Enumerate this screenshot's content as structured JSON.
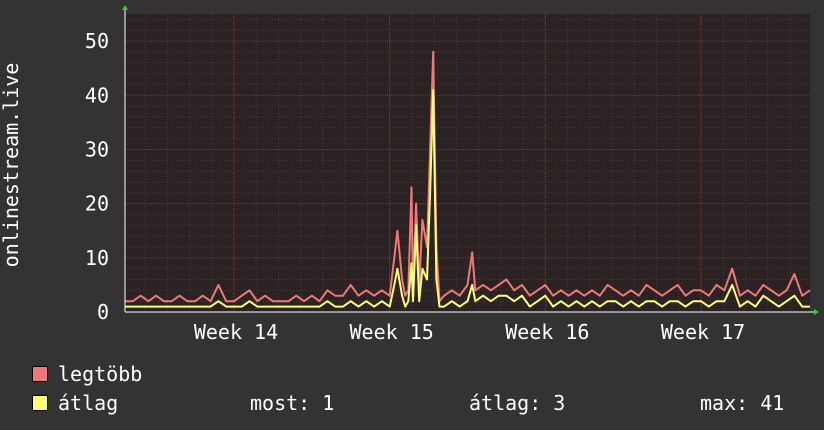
{
  "chart_data": {
    "type": "line",
    "ylabel": "onlinestream.live",
    "ylim": [
      0,
      55
    ],
    "yticks": [
      0,
      10,
      20,
      30,
      40,
      50
    ],
    "x_range_weeks": [
      13.3,
      17.7
    ],
    "xticks": [
      {
        "label": "Week 14",
        "x": 14.0
      },
      {
        "label": "Week 15",
        "x": 15.0
      },
      {
        "label": "Week 16",
        "x": 16.0
      },
      {
        "label": "Week 17",
        "x": 17.0
      }
    ],
    "grid": true,
    "background": "#2b2323",
    "series": [
      {
        "name": "legtöbb",
        "color": "#f07878",
        "points": [
          [
            13.3,
            2
          ],
          [
            13.35,
            2
          ],
          [
            13.4,
            3
          ],
          [
            13.45,
            2
          ],
          [
            13.5,
            3
          ],
          [
            13.55,
            2
          ],
          [
            13.6,
            2
          ],
          [
            13.65,
            3
          ],
          [
            13.7,
            2
          ],
          [
            13.75,
            2
          ],
          [
            13.8,
            3
          ],
          [
            13.85,
            2
          ],
          [
            13.9,
            5
          ],
          [
            13.95,
            2
          ],
          [
            14.0,
            2
          ],
          [
            14.05,
            3
          ],
          [
            14.1,
            4
          ],
          [
            14.15,
            2
          ],
          [
            14.2,
            3
          ],
          [
            14.25,
            2
          ],
          [
            14.3,
            2
          ],
          [
            14.35,
            2
          ],
          [
            14.4,
            3
          ],
          [
            14.45,
            2
          ],
          [
            14.5,
            3
          ],
          [
            14.55,
            2
          ],
          [
            14.6,
            4
          ],
          [
            14.65,
            3
          ],
          [
            14.7,
            3
          ],
          [
            14.75,
            5
          ],
          [
            14.8,
            3
          ],
          [
            14.85,
            4
          ],
          [
            14.9,
            3
          ],
          [
            14.95,
            4
          ],
          [
            15.0,
            3
          ],
          [
            15.03,
            10
          ],
          [
            15.05,
            15
          ],
          [
            15.08,
            6
          ],
          [
            15.1,
            3
          ],
          [
            15.12,
            4
          ],
          [
            15.14,
            23
          ],
          [
            15.15,
            4
          ],
          [
            15.17,
            20
          ],
          [
            15.19,
            5
          ],
          [
            15.21,
            17
          ],
          [
            15.24,
            12
          ],
          [
            15.26,
            30
          ],
          [
            15.28,
            48
          ],
          [
            15.3,
            12
          ],
          [
            15.32,
            2
          ],
          [
            15.35,
            3
          ],
          [
            15.4,
            4
          ],
          [
            15.45,
            3
          ],
          [
            15.5,
            5
          ],
          [
            15.53,
            11
          ],
          [
            15.55,
            4
          ],
          [
            15.6,
            5
          ],
          [
            15.65,
            4
          ],
          [
            15.7,
            5
          ],
          [
            15.75,
            6
          ],
          [
            15.8,
            4
          ],
          [
            15.85,
            5
          ],
          [
            15.9,
            3
          ],
          [
            15.95,
            4
          ],
          [
            16.0,
            5
          ],
          [
            16.05,
            3
          ],
          [
            16.1,
            4
          ],
          [
            16.15,
            3
          ],
          [
            16.2,
            4
          ],
          [
            16.25,
            3
          ],
          [
            16.3,
            4
          ],
          [
            16.35,
            3
          ],
          [
            16.4,
            5
          ],
          [
            16.45,
            4
          ],
          [
            16.5,
            3
          ],
          [
            16.55,
            4
          ],
          [
            16.6,
            3
          ],
          [
            16.65,
            5
          ],
          [
            16.7,
            4
          ],
          [
            16.75,
            3
          ],
          [
            16.8,
            4
          ],
          [
            16.85,
            5
          ],
          [
            16.9,
            3
          ],
          [
            16.95,
            4
          ],
          [
            17.0,
            4
          ],
          [
            17.05,
            3
          ],
          [
            17.1,
            5
          ],
          [
            17.15,
            4
          ],
          [
            17.2,
            8
          ],
          [
            17.25,
            3
          ],
          [
            17.3,
            4
          ],
          [
            17.35,
            3
          ],
          [
            17.4,
            5
          ],
          [
            17.45,
            4
          ],
          [
            17.5,
            3
          ],
          [
            17.55,
            4
          ],
          [
            17.6,
            7
          ],
          [
            17.65,
            3
          ],
          [
            17.7,
            4
          ]
        ]
      },
      {
        "name": "átlag",
        "color": "#ffff77",
        "points": [
          [
            13.3,
            1
          ],
          [
            13.35,
            1
          ],
          [
            13.4,
            1
          ],
          [
            13.45,
            1
          ],
          [
            13.5,
            1
          ],
          [
            13.55,
            1
          ],
          [
            13.6,
            1
          ],
          [
            13.65,
            1
          ],
          [
            13.7,
            1
          ],
          [
            13.75,
            1
          ],
          [
            13.8,
            1
          ],
          [
            13.85,
            1
          ],
          [
            13.9,
            2
          ],
          [
            13.95,
            1
          ],
          [
            14.0,
            1
          ],
          [
            14.05,
            1
          ],
          [
            14.1,
            2
          ],
          [
            14.15,
            1
          ],
          [
            14.2,
            1
          ],
          [
            14.25,
            1
          ],
          [
            14.3,
            1
          ],
          [
            14.35,
            1
          ],
          [
            14.4,
            1
          ],
          [
            14.45,
            1
          ],
          [
            14.5,
            1
          ],
          [
            14.55,
            1
          ],
          [
            14.6,
            2
          ],
          [
            14.65,
            1
          ],
          [
            14.7,
            1
          ],
          [
            14.75,
            2
          ],
          [
            14.8,
            1
          ],
          [
            14.85,
            2
          ],
          [
            14.9,
            1
          ],
          [
            14.95,
            2
          ],
          [
            15.0,
            1
          ],
          [
            15.03,
            5
          ],
          [
            15.05,
            8
          ],
          [
            15.08,
            3
          ],
          [
            15.1,
            1
          ],
          [
            15.12,
            2
          ],
          [
            15.14,
            9
          ],
          [
            15.15,
            2
          ],
          [
            15.17,
            16
          ],
          [
            15.19,
            2
          ],
          [
            15.21,
            8
          ],
          [
            15.24,
            6
          ],
          [
            15.26,
            22
          ],
          [
            15.28,
            41
          ],
          [
            15.3,
            6
          ],
          [
            15.32,
            1
          ],
          [
            15.35,
            1
          ],
          [
            15.4,
            2
          ],
          [
            15.45,
            1
          ],
          [
            15.5,
            2
          ],
          [
            15.53,
            5
          ],
          [
            15.55,
            2
          ],
          [
            15.6,
            3
          ],
          [
            15.65,
            2
          ],
          [
            15.7,
            3
          ],
          [
            15.75,
            3
          ],
          [
            15.8,
            2
          ],
          [
            15.85,
            3
          ],
          [
            15.9,
            1
          ],
          [
            15.95,
            2
          ],
          [
            16.0,
            3
          ],
          [
            16.05,
            1
          ],
          [
            16.1,
            2
          ],
          [
            16.15,
            1
          ],
          [
            16.2,
            2
          ],
          [
            16.25,
            1
          ],
          [
            16.3,
            2
          ],
          [
            16.35,
            1
          ],
          [
            16.4,
            2
          ],
          [
            16.45,
            2
          ],
          [
            16.5,
            1
          ],
          [
            16.55,
            2
          ],
          [
            16.6,
            1
          ],
          [
            16.65,
            2
          ],
          [
            16.7,
            2
          ],
          [
            16.75,
            1
          ],
          [
            16.8,
            2
          ],
          [
            16.85,
            2
          ],
          [
            16.9,
            1
          ],
          [
            16.95,
            2
          ],
          [
            17.0,
            2
          ],
          [
            17.05,
            1
          ],
          [
            17.1,
            2
          ],
          [
            17.15,
            2
          ],
          [
            17.2,
            5
          ],
          [
            17.25,
            1
          ],
          [
            17.3,
            2
          ],
          [
            17.35,
            1
          ],
          [
            17.4,
            3
          ],
          [
            17.45,
            2
          ],
          [
            17.5,
            1
          ],
          [
            17.55,
            2
          ],
          [
            17.6,
            3
          ],
          [
            17.65,
            1
          ],
          [
            17.7,
            1
          ]
        ]
      }
    ]
  },
  "legend": {
    "items": [
      {
        "label": "legtöbb",
        "color": "#f07878"
      },
      {
        "label": "átlag",
        "color": "#ffff77"
      }
    ],
    "stats": {
      "now_label": "most: 1",
      "avg_label": "átlag: 3",
      "max_label": "max: 41"
    }
  }
}
